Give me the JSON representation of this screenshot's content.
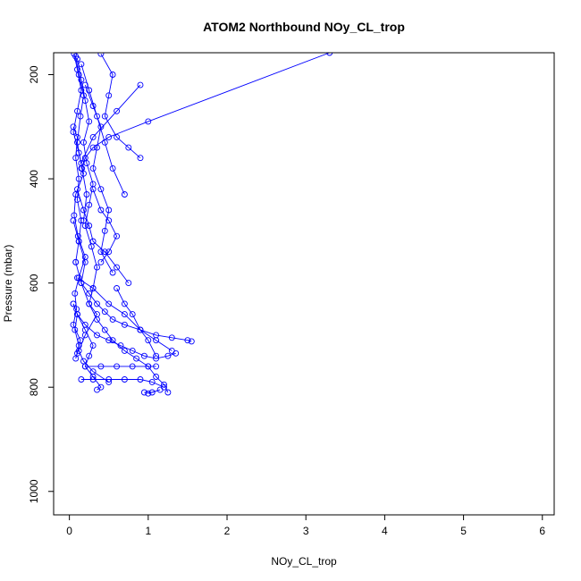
{
  "chart_data": {
    "type": "line",
    "title": "ATOM2 Northbound NOy_CL_trop",
    "xlabel": "NOy_CL_trop",
    "ylabel": "Pressure (mbar)",
    "xlim": [
      -0.2,
      6.15
    ],
    "ylim": [
      1045,
      158
    ],
    "y_reversed": true,
    "x_ticks": [
      0,
      1,
      2,
      3,
      4,
      5,
      6
    ],
    "y_ticks": [
      200,
      400,
      600,
      800,
      1000
    ],
    "grid": false,
    "legend": "none",
    "series_color": "#0000ff",
    "marker": "open-circle",
    "series": [
      {
        "x": [
          0.06,
          0.1,
          0.15,
          0.1,
          0.05,
          0.12,
          0.18,
          0.08,
          0.06,
          0.11,
          0.2,
          0.12,
          0.07,
          0.09,
          0.05,
          0.14,
          0.1,
          0.08,
          0.12,
          0.07,
          0.1,
          0.05
        ],
        "y": [
          160,
          190,
          230,
          270,
          310,
          350,
          390,
          430,
          470,
          510,
          550,
          590,
          620,
          650,
          680,
          710,
          735,
          745,
          720,
          690,
          660,
          640
        ]
      },
      {
        "x": [
          0.1,
          0.15,
          0.2,
          0.25,
          0.18,
          0.22,
          0.3,
          0.25,
          0.2,
          0.28,
          0.35,
          0.3,
          0.25,
          0.35,
          0.45,
          0.55,
          0.7,
          0.85,
          1.0,
          1.1,
          1.2,
          1.25
        ],
        "y": [
          170,
          210,
          250,
          290,
          330,
          370,
          410,
          450,
          490,
          530,
          570,
          610,
          640,
          670,
          690,
          710,
          730,
          745,
          760,
          780,
          795,
          810
        ]
      },
      {
        "x": [
          3.3,
          1.0,
          0.5,
          0.3,
          0.2,
          0.15
        ],
        "y": [
          158,
          290,
          320,
          340,
          360,
          380
        ]
      },
      {
        "x": [
          0.05,
          0.12,
          0.2,
          0.15,
          0.25,
          0.35,
          0.45,
          0.55,
          0.7,
          0.9,
          1.1,
          1.3,
          1.5,
          1.55
        ],
        "y": [
          480,
          520,
          560,
          600,
          620,
          640,
          655,
          670,
          680,
          690,
          700,
          705,
          710,
          712
        ]
      },
      {
        "x": [
          0.2,
          0.4,
          0.6,
          0.8,
          1.0,
          1.1
        ],
        "y": [
          760,
          760,
          760,
          760,
          760,
          760
        ]
      },
      {
        "x": [
          0.15,
          0.3,
          0.5,
          0.7,
          0.9,
          1.05,
          1.2
        ],
        "y": [
          785,
          785,
          785,
          785,
          785,
          790,
          800
        ]
      },
      {
        "x": [
          0.08,
          0.15,
          0.25,
          0.35,
          0.2,
          0.12,
          0.18,
          0.3,
          0.5
        ],
        "y": [
          560,
          600,
          640,
          660,
          700,
          730,
          750,
          770,
          790
        ]
      },
      {
        "x": [
          0.1,
          0.3,
          0.5,
          0.7,
          0.9,
          1.1,
          1.3
        ],
        "y": [
          590,
          610,
          640,
          660,
          690,
          710,
          730
        ]
      },
      {
        "x": [
          0.4,
          0.55,
          0.5,
          0.45,
          0.6,
          0.75,
          0.9
        ],
        "y": [
          160,
          200,
          240,
          280,
          320,
          340,
          360
        ]
      },
      {
        "x": [
          0.05,
          0.1,
          0.08,
          0.12,
          0.1,
          0.15,
          0.12,
          0.08
        ],
        "y": [
          300,
          320,
          360,
          400,
          440,
          480,
          520,
          560
        ]
      },
      {
        "x": [
          0.2,
          0.3,
          0.4,
          0.35,
          0.3,
          0.4,
          0.5,
          0.45,
          0.4,
          0.55
        ],
        "y": [
          220,
          260,
          300,
          340,
          380,
          420,
          460,
          500,
          540,
          580
        ]
      },
      {
        "x": [
          0.9,
          0.6,
          0.3,
          0.15
        ],
        "y": [
          220,
          270,
          320,
          370
        ]
      },
      {
        "x": [
          0.1,
          0.18,
          0.25,
          0.3,
          0.45,
          0.6,
          0.75
        ],
        "y": [
          420,
          460,
          490,
          520,
          540,
          570,
          600
        ]
      },
      {
        "x": [
          0.05,
          0.1,
          0.2,
          0.35,
          0.5,
          0.65,
          0.8,
          0.95,
          1.1,
          1.25,
          1.35
        ],
        "y": [
          640,
          660,
          680,
          700,
          710,
          720,
          730,
          740,
          745,
          740,
          735
        ]
      },
      {
        "x": [
          0.1,
          0.2,
          0.3,
          0.25,
          0.2,
          0.3,
          0.4,
          0.35
        ],
        "y": [
          660,
          690,
          720,
          740,
          760,
          780,
          800,
          805
        ]
      },
      {
        "x": [
          0.95,
          1.05,
          1.15,
          1.0
        ],
        "y": [
          810,
          810,
          805,
          812
        ]
      },
      {
        "x": [
          0.15,
          0.25,
          0.35,
          0.45,
          0.55,
          0.7
        ],
        "y": [
          180,
          230,
          280,
          330,
          380,
          430
        ]
      },
      {
        "x": [
          0.08,
          0.12,
          0.18,
          0.14,
          0.1,
          0.16,
          0.22,
          0.18
        ],
        "y": [
          165,
          200,
          240,
          280,
          330,
          380,
          430,
          480
        ]
      },
      {
        "x": [
          0.6,
          0.7,
          0.8,
          0.9,
          1.0,
          1.1
        ],
        "y": [
          610,
          640,
          660,
          690,
          710,
          740
        ]
      },
      {
        "x": [
          0.3,
          0.4,
          0.5,
          0.6,
          0.5,
          0.4
        ],
        "y": [
          420,
          460,
          480,
          510,
          540,
          560
        ]
      }
    ]
  }
}
